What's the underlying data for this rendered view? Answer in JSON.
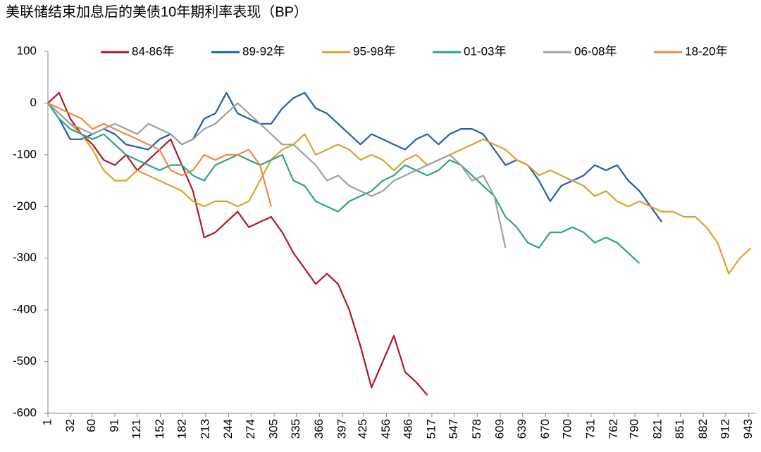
{
  "chart_data": {
    "type": "line",
    "title": "美联储结束加息后的美债10年期利率表现（BP）",
    "x": [
      1,
      16,
      31,
      46,
      61,
      76,
      91,
      106,
      121,
      136,
      151,
      166,
      181,
      196,
      211,
      226,
      241,
      256,
      271,
      286,
      301,
      316,
      331,
      346,
      361,
      376,
      391,
      406,
      421,
      436,
      451,
      466,
      481,
      496,
      511,
      526,
      541,
      556,
      571,
      586,
      601,
      616,
      631,
      646,
      661,
      676,
      691,
      706,
      721,
      736,
      751,
      766,
      781,
      796,
      811,
      826,
      841,
      856,
      871,
      886,
      901,
      916,
      931,
      946
    ],
    "xlim": [
      1,
      948
    ],
    "xticks": [
      1,
      32,
      60,
      91,
      121,
      152,
      182,
      213,
      244,
      274,
      305,
      335,
      366,
      397,
      425,
      456,
      486,
      517,
      547,
      578,
      609,
      639,
      670,
      700,
      731,
      762,
      790,
      821,
      851,
      882,
      912,
      943
    ],
    "ylim": [
      -600,
      100
    ],
    "yticks": [
      100,
      0,
      -100,
      -200,
      -300,
      -400,
      -500,
      -600
    ],
    "legend": "top",
    "series": [
      {
        "name": "84-86年",
        "color": "#b0182a",
        "values": [
          0,
          20,
          -30,
          -60,
          -80,
          -110,
          -120,
          -100,
          -130,
          -110,
          -90,
          -70,
          -120,
          -170,
          -260,
          -250,
          -230,
          -210,
          -240,
          -230,
          -220,
          -250,
          -290,
          -320,
          -350,
          -330,
          -350,
          -400,
          -470,
          -550,
          -500,
          -450,
          -520,
          -540,
          -565,
          null,
          null,
          null,
          null,
          null,
          null,
          null,
          null,
          null,
          null,
          null,
          null,
          null,
          null,
          null,
          null,
          null,
          null,
          null,
          null,
          null,
          null,
          null,
          null,
          null,
          null,
          null,
          null,
          null
        ]
      },
      {
        "name": "89-92年",
        "color": "#1f5fad",
        "values": [
          0,
          -30,
          -70,
          -70,
          -60,
          -50,
          -60,
          -80,
          -85,
          -90,
          -70,
          -60,
          -80,
          -70,
          -30,
          -20,
          20,
          -20,
          -30,
          -40,
          -40,
          -10,
          10,
          20,
          -10,
          -20,
          -40,
          -60,
          -80,
          -60,
          -70,
          -80,
          -90,
          -70,
          -60,
          -80,
          -60,
          -50,
          -50,
          -60,
          -90,
          -120,
          -110,
          -120,
          -150,
          -190,
          -160,
          -150,
          -140,
          -120,
          -130,
          -120,
          -150,
          -170,
          -200,
          -230,
          null,
          null,
          null,
          null,
          null,
          null,
          null,
          null
        ]
      },
      {
        "name": "95-98年",
        "color": "#d4a52a",
        "values": [
          0,
          -20,
          -40,
          -60,
          -90,
          -130,
          -150,
          -150,
          -130,
          -140,
          -150,
          -160,
          -170,
          -190,
          -200,
          -190,
          -190,
          -200,
          -190,
          -150,
          -110,
          -90,
          -80,
          -60,
          -100,
          -90,
          -80,
          -90,
          -110,
          -100,
          -110,
          -130,
          -110,
          -100,
          -120,
          -110,
          -100,
          -90,
          -80,
          -70,
          -80,
          -90,
          -110,
          -120,
          -140,
          -130,
          -140,
          -150,
          -160,
          -180,
          -170,
          -190,
          -200,
          -190,
          -200,
          -210,
          -210,
          -220,
          -220,
          -240,
          -270,
          -330,
          -300,
          -280
        ]
      },
      {
        "name": "01-03年",
        "color": "#2aa58a",
        "values": [
          0,
          -30,
          -50,
          -60,
          -70,
          -60,
          -80,
          -100,
          -110,
          -120,
          -130,
          -120,
          -120,
          -140,
          -150,
          -120,
          -110,
          -100,
          -110,
          -120,
          -110,
          -100,
          -150,
          -160,
          -190,
          -200,
          -210,
          -190,
          -180,
          -170,
          -150,
          -140,
          -120,
          -130,
          -140,
          -130,
          -110,
          -120,
          -140,
          -160,
          -180,
          -220,
          -240,
          -270,
          -280,
          -250,
          -250,
          -240,
          -250,
          -270,
          -260,
          -270,
          -290,
          -310,
          null,
          null,
          null,
          null,
          null,
          null,
          null,
          null,
          null,
          null
        ]
      },
      {
        "name": "06-08年",
        "color": "#a0a0a0",
        "values": [
          0,
          -20,
          -40,
          -50,
          -60,
          -50,
          -40,
          -50,
          -60,
          -40,
          -50,
          -60,
          -80,
          -70,
          -50,
          -40,
          -20,
          0,
          -20,
          -40,
          -60,
          -80,
          -80,
          -100,
          -120,
          -150,
          -140,
          -160,
          -170,
          -180,
          -170,
          -150,
          -140,
          -130,
          -120,
          -110,
          -100,
          -120,
          -150,
          -140,
          -180,
          -280,
          null,
          null,
          null,
          null,
          null,
          null,
          null,
          null,
          null,
          null,
          null,
          null,
          null,
          null,
          null,
          null,
          null,
          null,
          null,
          null,
          null,
          null
        ]
      },
      {
        "name": "18-20年",
        "color": "#f08a3b",
        "values": [
          0,
          -10,
          -20,
          -30,
          -50,
          -40,
          -50,
          -60,
          -70,
          -80,
          -90,
          -130,
          -140,
          -130,
          -100,
          -110,
          -100,
          -100,
          -90,
          -120,
          -200,
          null,
          null,
          null,
          null,
          null,
          null,
          null,
          null,
          null,
          null,
          null,
          null,
          null,
          null,
          null,
          null,
          null,
          null,
          null,
          null,
          null,
          null,
          null,
          null,
          null,
          null,
          null,
          null,
          null,
          null,
          null,
          null,
          null,
          null,
          null,
          null,
          null,
          null,
          null,
          null,
          null,
          null,
          null
        ]
      }
    ]
  }
}
